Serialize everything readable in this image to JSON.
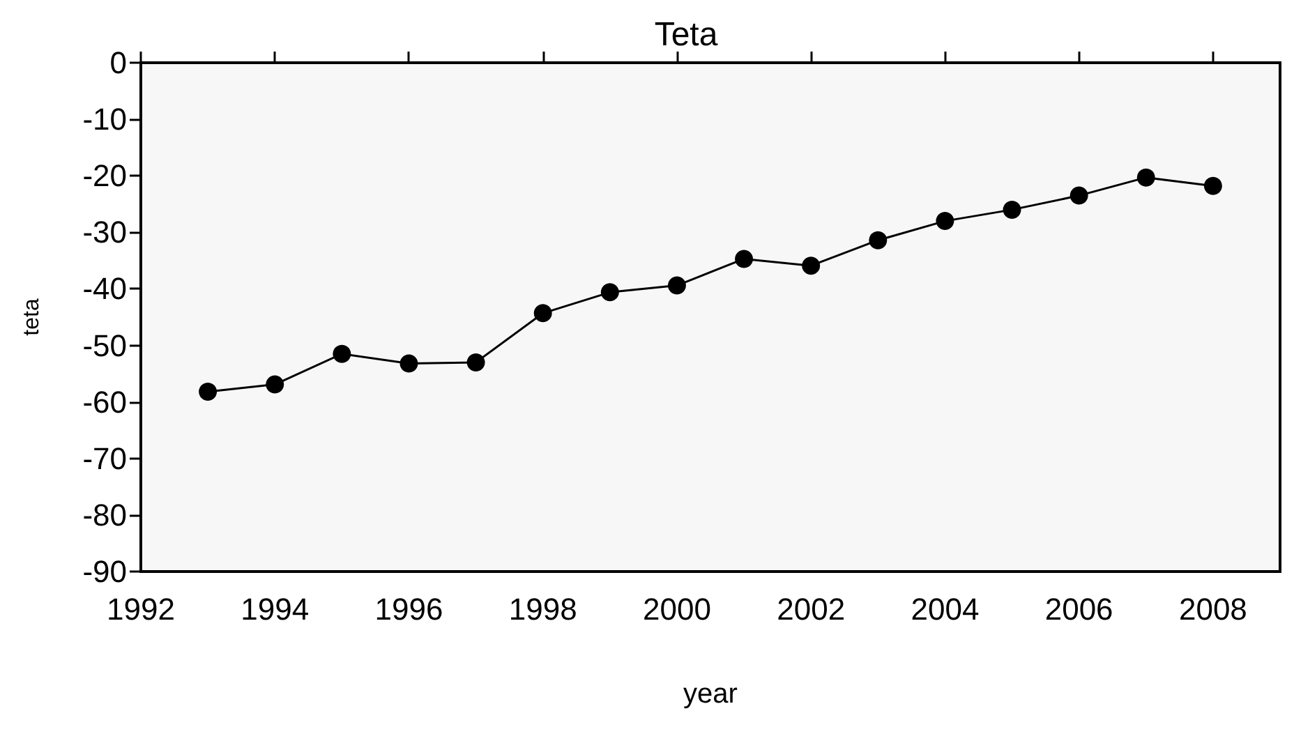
{
  "chart_data": {
    "type": "line",
    "title": "Teta",
    "xlabel": "year",
    "ylabel": "teta",
    "x": [
      1993,
      1994,
      1995,
      1996,
      1997,
      1998,
      1999,
      2000,
      2001,
      2002,
      2003,
      2004,
      2005,
      2006,
      2007,
      2008
    ],
    "series": [
      {
        "color": "#000000",
        "values": [
          -58.2,
          -56.9,
          -51.5,
          -53.2,
          -53,
          -44.3,
          -40.6,
          -39.4,
          -34.7,
          -35.9,
          -31.4,
          -28,
          -26,
          -23.5,
          -20.3,
          -21.8
        ]
      }
    ],
    "xlim": [
      1992,
      2009
    ],
    "xticks": [
      1992,
      1994,
      1996,
      1998,
      2000,
      2002,
      2004,
      2006,
      2008
    ],
    "ylim": [
      -90,
      0
    ],
    "yticks": [
      0,
      -10,
      -20,
      -30,
      -40,
      -50,
      -60,
      -70,
      -80,
      -90
    ],
    "grid": false,
    "marker": "circle",
    "line_style": "solid"
  }
}
